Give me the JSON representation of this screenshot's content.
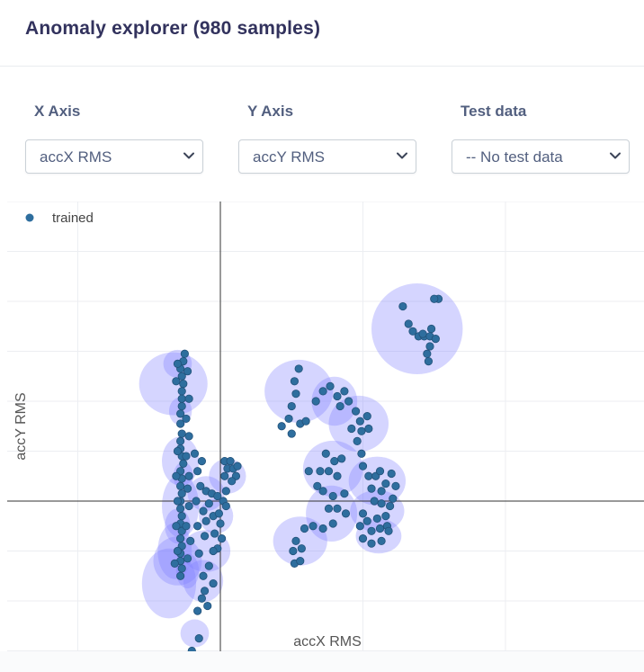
{
  "header": {
    "title": "Anomaly explorer (980 samples)"
  },
  "controls": {
    "x_axis": {
      "label": "X Axis",
      "selected": "accX RMS"
    },
    "y_axis": {
      "label": "Y Axis",
      "selected": "accY RMS"
    },
    "test_data": {
      "label": "Test data",
      "selected": "-- No test data"
    }
  },
  "colors": {
    "point": "#2e6e9e",
    "point_stroke": "#23527a",
    "cluster_fill": "#7b7bff",
    "grid": "#eceef2",
    "axis": "#333333"
  },
  "chart_data": {
    "type": "scatter",
    "xlabel": "accX RMS",
    "ylabel": "accY RMS",
    "xlim": [
      -1.0,
      3.0
    ],
    "ylim": [
      -1.2,
      1.2
    ],
    "grid": true,
    "legend": {
      "position": "top-left",
      "entries": [
        "trained"
      ]
    },
    "series": [
      {
        "name": "trained",
        "points": [
          [
            -0.25,
            0.59
          ],
          [
            -0.26,
            0.56
          ],
          [
            -0.28,
            0.53
          ],
          [
            -0.27,
            0.5
          ],
          [
            -0.26,
            0.47
          ],
          [
            -0.27,
            0.44
          ],
          [
            -0.27,
            0.41
          ],
          [
            -0.27,
            0.38
          ],
          [
            -0.28,
            0.35
          ],
          [
            -0.28,
            0.31
          ],
          [
            -0.27,
            0.27
          ],
          [
            -0.28,
            0.24
          ],
          [
            -0.28,
            0.21
          ],
          [
            -0.27,
            0.18
          ],
          [
            -0.26,
            0.15
          ],
          [
            -0.28,
            0.12
          ],
          [
            -0.27,
            0.09
          ],
          [
            -0.28,
            0.06
          ],
          [
            -0.27,
            0.03
          ],
          [
            -0.28,
            0.0
          ],
          [
            -0.28,
            -0.03
          ],
          [
            -0.27,
            -0.06
          ],
          [
            -0.28,
            -0.09
          ],
          [
            -0.27,
            -0.12
          ],
          [
            -0.28,
            -0.15
          ],
          [
            -0.27,
            -0.18
          ],
          [
            -0.28,
            -0.21
          ],
          [
            -0.28,
            -0.24
          ],
          [
            -0.27,
            -0.27
          ],
          [
            -0.28,
            -0.3
          ],
          [
            -0.3,
            0.55
          ],
          [
            -0.31,
            0.48
          ],
          [
            -0.3,
            0.2
          ],
          [
            -0.31,
            0.1
          ],
          [
            -0.3,
            0.0
          ],
          [
            -0.31,
            -0.1
          ],
          [
            -0.3,
            -0.2
          ],
          [
            -0.32,
            -0.25
          ],
          [
            -0.23,
            0.52
          ],
          [
            -0.22,
            0.41
          ],
          [
            -0.24,
            0.33
          ],
          [
            -0.22,
            0.26
          ],
          [
            -0.24,
            0.18
          ],
          [
            -0.22,
            0.1
          ],
          [
            -0.23,
            0.05
          ],
          [
            -0.22,
            -0.02
          ],
          [
            -0.24,
            -0.1
          ],
          [
            -0.21,
            -0.16
          ],
          [
            -0.23,
            -0.23
          ],
          [
            -0.18,
            0.19
          ],
          [
            -0.16,
            0.12
          ],
          [
            -0.13,
            0.16
          ],
          [
            -0.14,
            0.06
          ],
          [
            -0.17,
            0.0
          ],
          [
            -0.12,
            -0.04
          ],
          [
            -0.16,
            -0.1
          ],
          [
            -0.11,
            -0.14
          ],
          [
            -0.15,
            -0.21
          ],
          [
            -0.1,
            0.04
          ],
          [
            -0.08,
            -0.01
          ],
          [
            -0.06,
            0.03
          ],
          [
            -0.1,
            -0.08
          ],
          [
            -0.05,
            -0.06
          ],
          [
            -0.02,
            0.02
          ],
          [
            0.02,
            0.0
          ],
          [
            -0.01,
            -0.05
          ],
          [
            0.04,
            -0.02
          ],
          [
            0.0,
            -0.09
          ],
          [
            -0.04,
            -0.13
          ],
          [
            -0.02,
            -0.19
          ],
          [
            0.01,
            -0.15
          ],
          [
            -0.05,
            -0.2
          ],
          [
            -0.08,
            -0.26
          ],
          [
            -0.12,
            -0.3
          ],
          [
            -0.05,
            -0.33
          ],
          [
            -0.11,
            -0.36
          ],
          [
            -0.09,
            -0.42
          ],
          [
            -0.13,
            -0.39
          ],
          [
            -0.16,
            -0.44
          ],
          [
            -0.15,
            -0.55
          ],
          [
            -0.2,
            -0.6
          ],
          [
            -0.18,
            -0.64
          ],
          [
            -0.22,
            -0.69
          ],
          [
            -0.24,
            -0.72
          ],
          [
            -0.2,
            -0.75
          ],
          [
            0.03,
            0.16
          ],
          [
            0.05,
            0.13
          ],
          [
            0.03,
            0.1
          ],
          [
            0.07,
            0.16
          ],
          [
            0.09,
            0.13
          ],
          [
            0.12,
            0.14
          ],
          [
            0.11,
            0.1
          ],
          [
            0.08,
            0.08
          ],
          [
            0.04,
            0.04
          ],
          [
            0.55,
            0.53
          ],
          [
            0.52,
            0.48
          ],
          [
            0.53,
            0.43
          ],
          [
            0.5,
            0.38
          ],
          [
            0.48,
            0.33
          ],
          [
            0.43,
            0.3
          ],
          [
            0.5,
            0.27
          ],
          [
            0.56,
            0.31
          ],
          [
            0.6,
            0.32
          ],
          [
            0.67,
            0.4
          ],
          [
            0.72,
            0.44
          ],
          [
            0.77,
            0.46
          ],
          [
            0.82,
            0.42
          ],
          [
            0.87,
            0.44
          ],
          [
            0.84,
            0.38
          ],
          [
            0.9,
            0.4
          ],
          [
            0.95,
            0.36
          ],
          [
            0.98,
            0.32
          ],
          [
            0.92,
            0.29
          ],
          [
            0.99,
            0.28
          ],
          [
            1.03,
            0.34
          ],
          [
            1.04,
            0.29
          ],
          [
            0.96,
            0.24
          ],
          [
            0.99,
            0.19
          ],
          [
            0.74,
            0.19
          ],
          [
            0.8,
            0.16
          ],
          [
            0.85,
            0.17
          ],
          [
            0.7,
            0.12
          ],
          [
            0.76,
            0.12
          ],
          [
            0.82,
            0.1
          ],
          [
            0.62,
            0.12
          ],
          [
            0.68,
            0.06
          ],
          [
            0.72,
            0.04
          ],
          [
            0.79,
            0.02
          ],
          [
            0.87,
            0.03
          ],
          [
            0.82,
            -0.03
          ],
          [
            0.76,
            -0.03
          ],
          [
            0.88,
            -0.05
          ],
          [
            0.79,
            -0.09
          ],
          [
            0.72,
            -0.11
          ],
          [
            0.65,
            -0.1
          ],
          [
            0.59,
            -0.11
          ],
          [
            0.53,
            -0.16
          ],
          [
            0.51,
            -0.2
          ],
          [
            0.52,
            -0.25
          ],
          [
            0.56,
            -0.24
          ],
          [
            0.57,
            -0.19
          ],
          [
            1.0,
            0.14
          ],
          [
            1.04,
            0.1
          ],
          [
            1.09,
            0.1
          ],
          [
            1.12,
            0.12
          ],
          [
            1.06,
            0.05
          ],
          [
            1.13,
            0.04
          ],
          [
            1.16,
            0.07
          ],
          [
            1.08,
            0.0
          ],
          [
            1.13,
            -0.01
          ],
          [
            1.19,
            -0.02
          ],
          [
            1.16,
            -0.06
          ],
          [
            1.1,
            -0.07
          ],
          [
            1.03,
            -0.08
          ],
          [
            0.98,
            -0.1
          ],
          [
            1.06,
            -0.12
          ],
          [
            1.12,
            -0.11
          ],
          [
            1.17,
            -0.1
          ],
          [
            1.0,
            -0.15
          ],
          [
            1.06,
            -0.17
          ],
          [
            1.13,
            -0.16
          ],
          [
            1.2,
            0.11
          ],
          [
            1.23,
            0.06
          ],
          [
            1.21,
            0.01
          ],
          [
            1.18,
            -0.12
          ],
          [
            1.0,
            -0.05
          ],
          [
            1.28,
            0.78
          ],
          [
            1.32,
            0.71
          ],
          [
            1.35,
            0.68
          ],
          [
            1.39,
            0.66
          ],
          [
            1.43,
            0.66
          ],
          [
            1.47,
            0.66
          ],
          [
            1.51,
            0.65
          ],
          [
            1.47,
            0.62
          ],
          [
            1.45,
            0.59
          ],
          [
            1.46,
            0.56
          ],
          [
            1.42,
            0.67
          ],
          [
            1.48,
            0.69
          ],
          [
            1.53,
            0.81
          ],
          [
            1.5,
            0.81
          ]
        ]
      }
    ],
    "clusters": [
      {
        "x": -0.33,
        "y": 0.47,
        "rx": 0.24,
        "ry": 0.09
      },
      {
        "x": -0.3,
        "y": 0.55,
        "rx": 0.1,
        "ry": 0.04
      },
      {
        "x": -0.28,
        "y": 0.36,
        "rx": 0.08,
        "ry": 0.04
      },
      {
        "x": -0.28,
        "y": 0.16,
        "rx": 0.13,
        "ry": 0.07
      },
      {
        "x": -0.26,
        "y": 0.1,
        "rx": 0.07,
        "ry": 0.04
      },
      {
        "x": -0.28,
        "y": -0.02,
        "rx": 0.13,
        "ry": 0.09
      },
      {
        "x": -0.3,
        "y": -0.1,
        "rx": 0.09,
        "ry": 0.05
      },
      {
        "x": -0.32,
        "y": -0.2,
        "rx": 0.12,
        "ry": 0.08
      },
      {
        "x": -0.3,
        "y": -0.24,
        "rx": 0.17,
        "ry": 0.07
      },
      {
        "x": -0.36,
        "y": -0.33,
        "rx": 0.19,
        "ry": 0.1
      },
      {
        "x": -0.23,
        "y": -0.28,
        "rx": 0.08,
        "ry": 0.05
      },
      {
        "x": -0.1,
        "y": -0.2,
        "rx": 0.17,
        "ry": 0.06
      },
      {
        "x": -0.12,
        "y": -0.32,
        "rx": 0.14,
        "ry": 0.06
      },
      {
        "x": -0.1,
        "y": 0.03,
        "rx": 0.13,
        "ry": 0.05
      },
      {
        "x": -0.03,
        "y": -0.06,
        "rx": 0.12,
        "ry": 0.05
      },
      {
        "x": 0.05,
        "y": 0.1,
        "rx": 0.13,
        "ry": 0.05
      },
      {
        "x": -0.18,
        "y": -0.53,
        "rx": 0.1,
        "ry": 0.04
      },
      {
        "x": -0.24,
        "y": -0.71,
        "rx": 0.09,
        "ry": 0.04
      },
      {
        "x": 0.55,
        "y": 0.44,
        "rx": 0.24,
        "ry": 0.09
      },
      {
        "x": 0.8,
        "y": 0.4,
        "rx": 0.16,
        "ry": 0.07
      },
      {
        "x": 0.97,
        "y": 0.31,
        "rx": 0.21,
        "ry": 0.08
      },
      {
        "x": 0.79,
        "y": 0.13,
        "rx": 0.21,
        "ry": 0.08
      },
      {
        "x": 0.78,
        "y": -0.05,
        "rx": 0.18,
        "ry": 0.08
      },
      {
        "x": 0.56,
        "y": -0.16,
        "rx": 0.19,
        "ry": 0.07
      },
      {
        "x": 1.1,
        "y": 0.08,
        "rx": 0.2,
        "ry": 0.07
      },
      {
        "x": 1.1,
        "y": -0.04,
        "rx": 0.19,
        "ry": 0.06
      },
      {
        "x": 1.11,
        "y": -0.14,
        "rx": 0.16,
        "ry": 0.05
      },
      {
        "x": 1.38,
        "y": 0.69,
        "rx": 0.32,
        "ry": 0.13
      }
    ]
  }
}
